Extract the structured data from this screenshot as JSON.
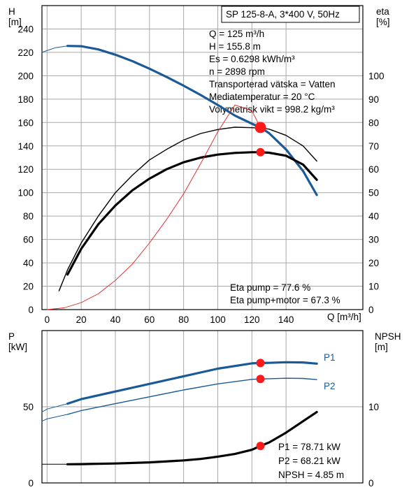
{
  "chart_data": [
    {
      "type": "line",
      "title": "SP 125-8-A, 3*400 V, 50Hz",
      "xlabel": "Q [m³/h]",
      "ylabel_left": "H\n[m]",
      "ylabel_right": "eta\n[%]",
      "xlim": [
        -3,
        185
      ],
      "ylim_left": [
        0,
        260
      ],
      "ylim_right": [
        0,
        130
      ],
      "grid": true,
      "x_ticks": [
        "0",
        "20",
        "40",
        "60",
        "80",
        "100",
        "120",
        "140"
      ],
      "left_ticks": [
        "0",
        "20",
        "40",
        "60",
        "80",
        "100",
        "120",
        "140",
        "160",
        "180",
        "200",
        "220",
        "240"
      ],
      "right_ticks": [
        "0",
        "10",
        "20",
        "30",
        "40",
        "50",
        "60",
        "70",
        "80",
        "90",
        "100"
      ],
      "info_lines": [
        "Q = 125 m³/h",
        "H = 155.8 m",
        "Es = 0.6298 kWh/m³",
        "n = 2898 rpm",
        "Transporterad vätska = Vatten",
        "Mediatemperatur = 20 °C",
        "Volymetrisk vikt = 998.2 kg/m³"
      ],
      "eff_lines": [
        "Eta pump = 77.6 %",
        "Eta pump+motor = 67.3 %"
      ],
      "series": [
        {
          "role": "head",
          "axis": "left",
          "color": "#1a5a96",
          "width": 3.2,
          "dashed_x": [
            -3,
            12
          ],
          "x": [
            -3,
            0,
            5,
            12,
            20,
            30,
            40,
            50,
            60,
            70,
            80,
            90,
            100,
            110,
            120,
            125,
            130,
            140,
            150,
            158
          ],
          "y": [
            220,
            221.5,
            224,
            225.5,
            225.3,
            222.5,
            218,
            212.5,
            206,
            199,
            191.5,
            183.5,
            175,
            166,
            159,
            155.8,
            151,
            137,
            118.5,
            98
          ]
        },
        {
          "role": "eta_pump",
          "axis": "right",
          "color": "#000000",
          "width": 1.4,
          "x": [
            7,
            12,
            20,
            30,
            40,
            50,
            60,
            70,
            80,
            90,
            100,
            110,
            120,
            125,
            130,
            140,
            150,
            158
          ],
          "y": [
            8,
            17,
            28.5,
            40,
            50,
            57.5,
            64,
            68.5,
            72.5,
            75.3,
            77,
            78,
            77.8,
            77.6,
            77.2,
            74.5,
            70,
            63.5
          ]
        },
        {
          "role": "eta_pump_motor",
          "axis": "right",
          "color": "#000000",
          "width": 3.2,
          "x": [
            12,
            20,
            30,
            40,
            50,
            60,
            70,
            80,
            90,
            100,
            110,
            120,
            125,
            130,
            140,
            150,
            158
          ],
          "y": [
            15,
            26,
            36.5,
            44.5,
            51,
            56,
            60,
            63,
            65,
            66.3,
            67,
            67.3,
            67.3,
            67.1,
            65.8,
            62,
            55.5
          ]
        },
        {
          "role": "system",
          "axis": "left",
          "color": "#e02020",
          "width": 0.9,
          "x": [
            0,
            10,
            20,
            30,
            40,
            50,
            60,
            70,
            80,
            90,
            100,
            110,
            120,
            125
          ],
          "y": [
            0,
            1.5,
            6,
            13.5,
            25,
            39,
            57,
            77,
            99,
            125,
            152,
            175,
            170,
            155.8
          ]
        }
      ],
      "points": [
        {
          "axis": "left",
          "x": 125,
          "y": 155.8,
          "r": 8
        },
        {
          "axis": "right",
          "x": 125,
          "y": 67.3,
          "r": 6
        }
      ]
    },
    {
      "type": "line",
      "xlabel": "",
      "ylabel_left": "P\n[kW]",
      "ylabel_right": "NPSH\n[m]",
      "xlim": [
        -3,
        185
      ],
      "ylim_left": [
        0,
        100
      ],
      "ylim_right": [
        0,
        20
      ],
      "grid": true,
      "left_ticks": [
        "0",
        "50"
      ],
      "right_ticks": [
        "0",
        "10"
      ],
      "labels": {
        "p1": "P1",
        "p2": "P2"
      },
      "values_lines": [
        "P1 = 78.71 kW",
        "P2 = 68.21 kW",
        "NPSH = 4.85 m"
      ],
      "series": [
        {
          "role": "P1",
          "axis": "left",
          "color": "#1a5a96",
          "width": 3.2,
          "dashed_x": [
            -3,
            12
          ],
          "x": [
            -3,
            0,
            12,
            20,
            40,
            60,
            80,
            100,
            120,
            125,
            130,
            140,
            150,
            158
          ],
          "y": [
            46.5,
            48.5,
            52,
            55,
            60,
            65,
            70,
            75,
            78.5,
            78.71,
            78.8,
            79.2,
            79.1,
            78.3
          ]
        },
        {
          "role": "P2",
          "axis": "left",
          "color": "#1a5a96",
          "width": 1.4,
          "dashed_x": [
            -3,
            12
          ],
          "x": [
            -3,
            0,
            12,
            20,
            40,
            60,
            80,
            100,
            120,
            125,
            130,
            140,
            150,
            158
          ],
          "y": [
            40.5,
            42,
            45,
            47.5,
            52,
            56.5,
            61,
            65,
            68,
            68.21,
            68.4,
            68.7,
            68.6,
            67.8
          ]
        },
        {
          "role": "NPSH",
          "axis": "right",
          "color": "#000000",
          "width": 3.2,
          "dashed_x": [
            -3,
            12
          ],
          "x": [
            -3,
            0,
            12,
            20,
            40,
            60,
            80,
            90,
            100,
            110,
            120,
            125,
            130,
            140,
            150,
            158
          ],
          "y": [
            2.45,
            2.45,
            2.45,
            2.47,
            2.55,
            2.7,
            2.95,
            3.15,
            3.45,
            3.8,
            4.35,
            4.85,
            5.3,
            6.6,
            8.1,
            9.3
          ]
        }
      ],
      "points": [
        {
          "axis": "left",
          "x": 125,
          "y": 78.71,
          "r": 6
        },
        {
          "axis": "left",
          "x": 125,
          "y": 68.21,
          "r": 6
        },
        {
          "axis": "right",
          "x": 125,
          "y": 4.85,
          "r": 6
        }
      ]
    }
  ]
}
